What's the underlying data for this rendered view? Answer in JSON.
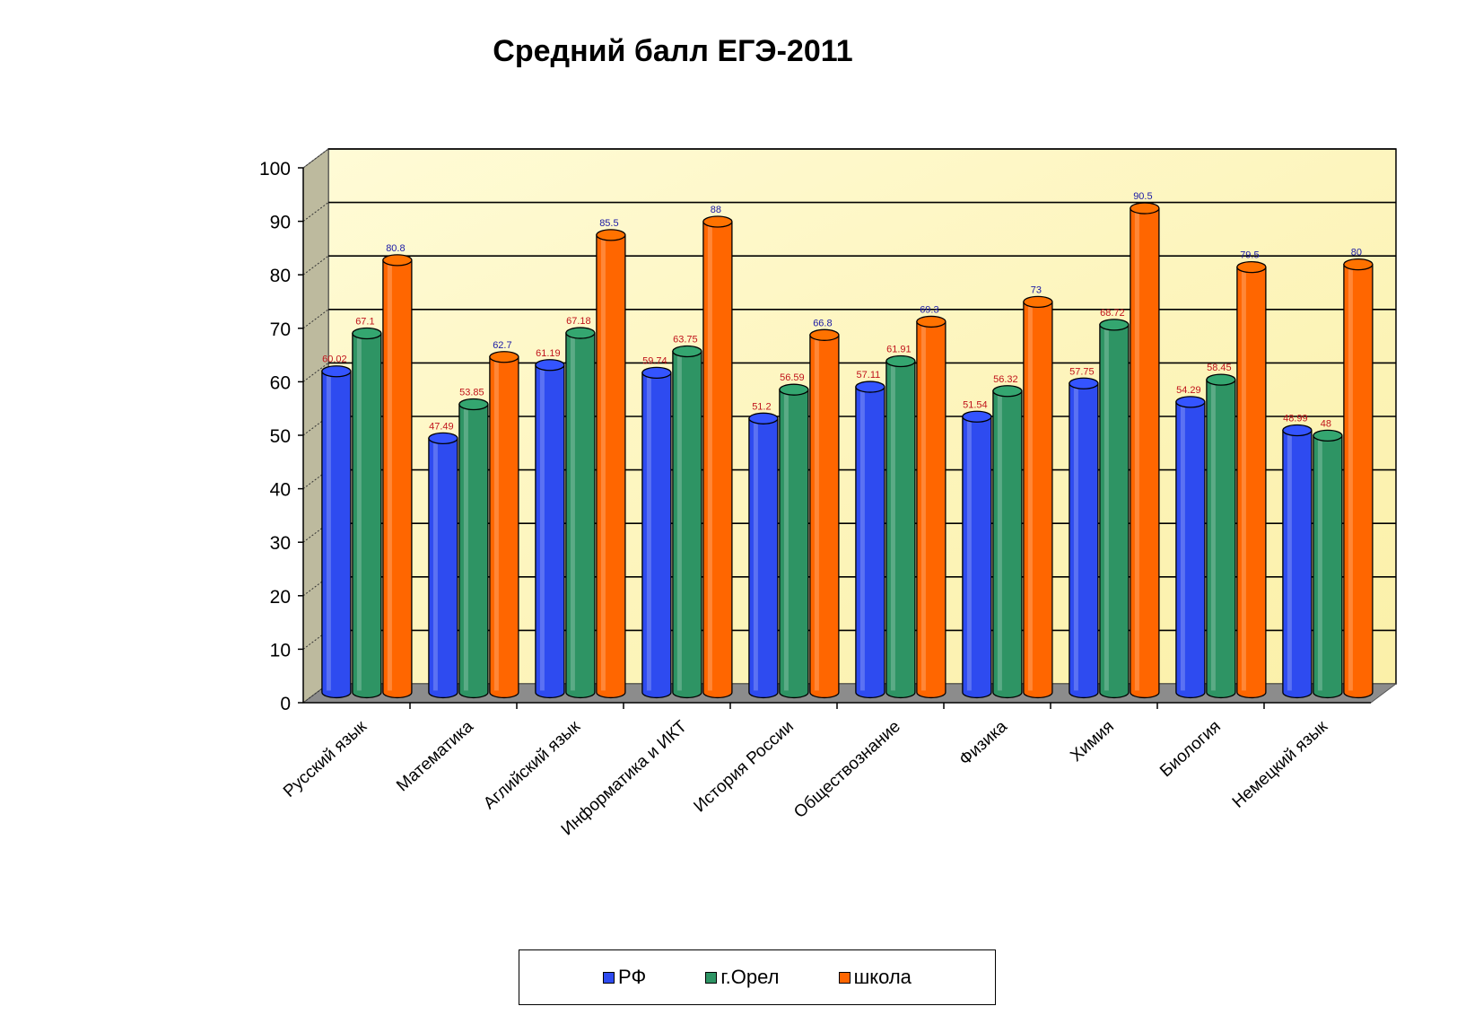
{
  "chart_data": {
    "type": "bar",
    "title": "Средний балл ЕГЭ-2011",
    "xlabel": "",
    "ylabel": "",
    "ylim": [
      0,
      100
    ],
    "yticks": [
      "0",
      "10",
      "20",
      "30",
      "40",
      "50",
      "60",
      "70",
      "80",
      "90",
      "100"
    ],
    "grid": true,
    "legend_position": "bottom",
    "categories": [
      "Русский язык",
      "Математика",
      "Аглийский язык",
      "Информатика и ИКТ",
      "История России",
      "Обществознание",
      "Физика",
      "Химия",
      "Биология",
      "Немецкий язык"
    ],
    "series": [
      {
        "name": "РФ",
        "color": "#2E4BF0",
        "label_color": "#C0141C",
        "values": [
          60.02,
          47.49,
          61.19,
          59.74,
          51.2,
          57.11,
          51.54,
          57.75,
          54.29,
          48.99
        ],
        "labels": [
          "60.02",
          "47.49",
          "61.19",
          "59.74",
          "51.2",
          "57.11",
          "51.54",
          "57.75",
          "54.29",
          "48.99"
        ]
      },
      {
        "name": "г.Орел",
        "color": "#2E9464",
        "label_color": "#C0141C",
        "values": [
          67.1,
          53.85,
          67.18,
          63.75,
          56.59,
          61.91,
          56.32,
          68.72,
          58.45,
          48
        ],
        "labels": [
          "67.1",
          "53.85",
          "67.18",
          "63.75",
          "56.59",
          "61.91",
          "56.32",
          "68.72",
          "58.45",
          "48"
        ]
      },
      {
        "name": "школа",
        "color": "#FF6600",
        "label_color": "#1A1AA6",
        "values": [
          80.8,
          62.7,
          85.5,
          88,
          66.8,
          69.3,
          73,
          90.5,
          79.5,
          80
        ],
        "labels": [
          "80.8",
          "62.7",
          "85.5",
          "88",
          "66.8",
          "69.3",
          "73",
          "90.5",
          "79.5",
          "80"
        ]
      }
    ]
  },
  "legend": {
    "items": [
      {
        "label": "РФ",
        "color": "#2E4BF0"
      },
      {
        "label": "г.Орел",
        "color": "#2E9464"
      },
      {
        "label": "школа",
        "color": "#FF6600"
      }
    ]
  }
}
